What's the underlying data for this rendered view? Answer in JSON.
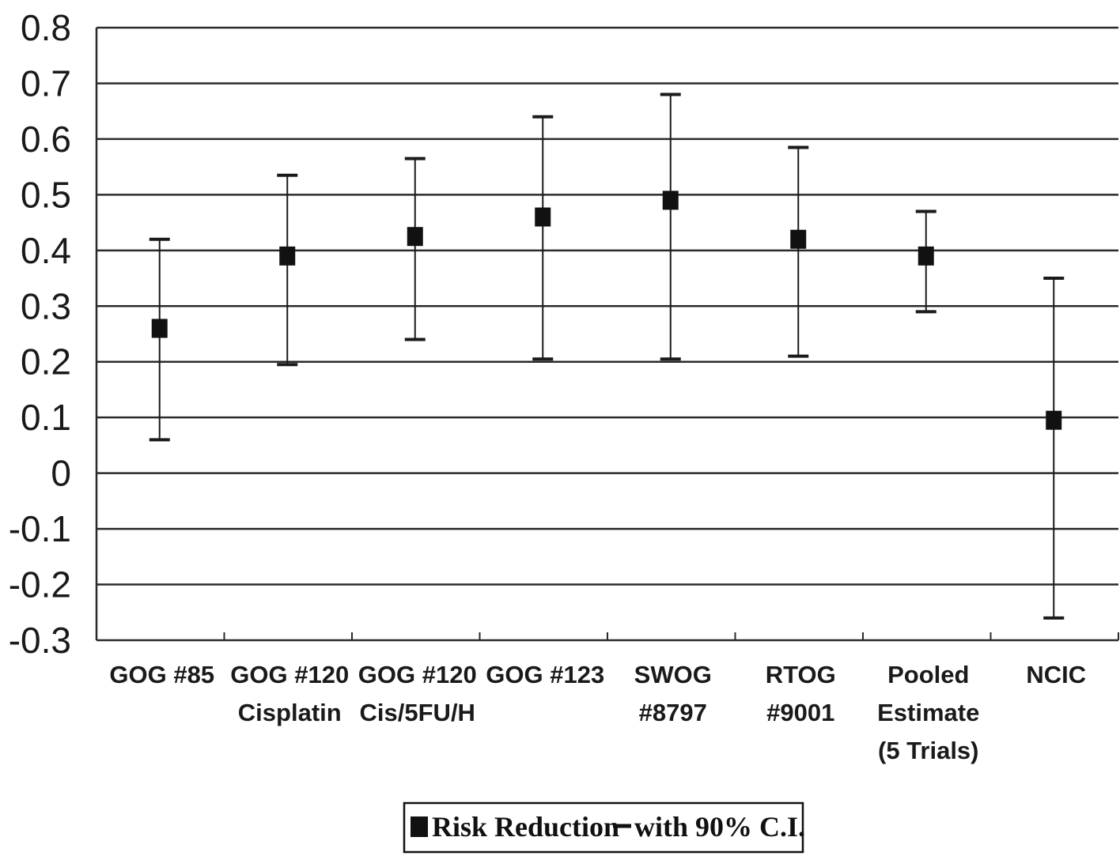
{
  "chart_data": {
    "type": "scatter",
    "title": "",
    "xlabel": "",
    "ylabel": "",
    "ylim": [
      -0.3,
      0.8
    ],
    "yticks": [
      "0.8",
      "0.7",
      "0.6",
      "0.5",
      "0.4",
      "0.3",
      "0.2",
      "0.1",
      "0",
      "-0.1",
      "-0.2",
      "-0.3"
    ],
    "grid": true,
    "legend_position": "bottom-center",
    "legend": {
      "label": "Risk Reduction",
      "ci_label": "with 90% C.I."
    },
    "categories": [
      [
        "GOG #85"
      ],
      [
        "GOG #120",
        "Cisplatin"
      ],
      [
        "GOG #120",
        "Cis/5FU/H"
      ],
      [
        "GOG #123"
      ],
      [
        "SWOG",
        "#8797"
      ],
      [
        "RTOG",
        "#9001"
      ],
      [
        "Pooled",
        "Estimate",
        "(5 Trials)"
      ],
      [
        "NCIC"
      ]
    ],
    "series": [
      {
        "name": "Risk Reduction",
        "values": [
          0.26,
          0.39,
          0.425,
          0.46,
          0.49,
          0.42,
          0.39,
          0.095
        ],
        "ci_lower": [
          0.06,
          0.195,
          0.24,
          0.205,
          0.205,
          0.21,
          0.29,
          -0.26
        ],
        "ci_upper": [
          0.42,
          0.535,
          0.565,
          0.64,
          0.68,
          0.585,
          0.47,
          0.35
        ]
      }
    ]
  }
}
